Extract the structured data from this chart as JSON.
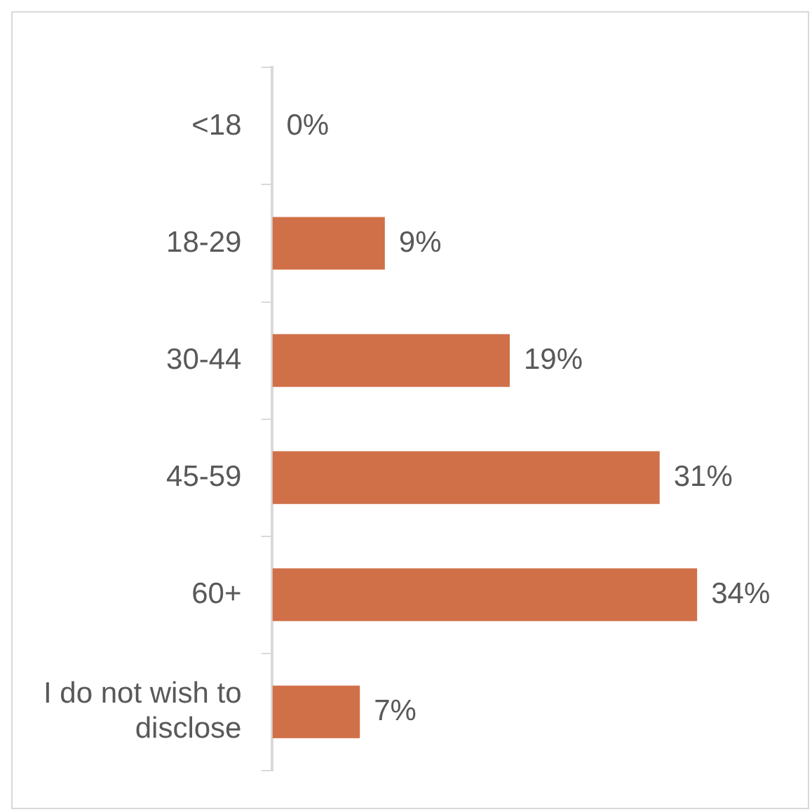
{
  "chart_data": {
    "type": "bar",
    "orientation": "horizontal",
    "categories": [
      "<18",
      "18-29",
      "30-44",
      "45-59",
      "60+",
      "I do not wish to disclose"
    ],
    "values": [
      0,
      9,
      19,
      31,
      34,
      7
    ],
    "value_labels": [
      "0%",
      "9%",
      "19%",
      "31%",
      "34%",
      "7%"
    ],
    "color": "#d07048",
    "grid": false,
    "legend": false
  }
}
